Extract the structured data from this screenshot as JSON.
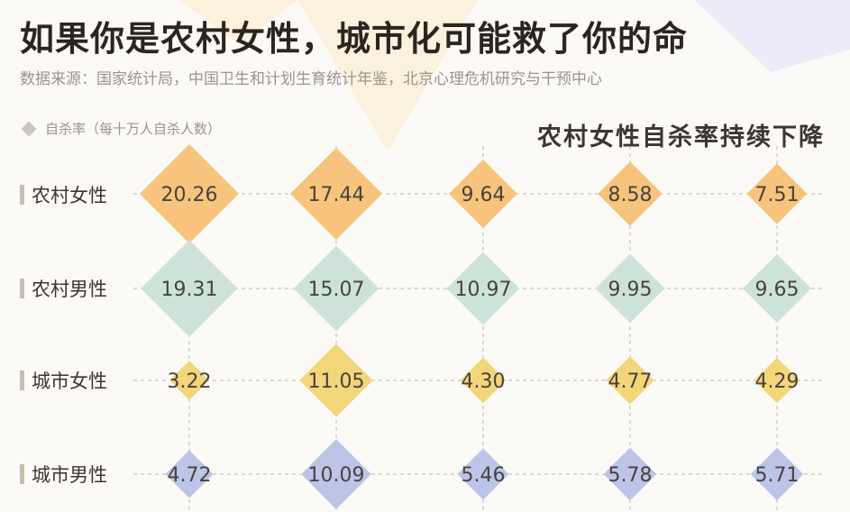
{
  "title": "如果你是农村女性，城市化可能救了你的命",
  "source": "数据来源：国家统计局，中国卫生和计划生育统计年鉴，北京心理危机研究与干预中心",
  "legend_label": "自杀率（每十万人自杀人数）",
  "subtitle": "农村女性自杀率持续下降",
  "colors": {
    "rural_female": "#f8c47d",
    "rural_male": "#cde3da",
    "urban_female": "#f3d67a",
    "urban_male": "#bcc5e8"
  },
  "chart_data": {
    "type": "scatter",
    "title": "农村女性自杀率持续下降",
    "ylabel": "自杀率（每十万人自杀人数）",
    "series": [
      {
        "name": "农村女性",
        "values": [
          20.26,
          17.44,
          9.64,
          8.58,
          7.51
        ]
      },
      {
        "name": "农村男性",
        "values": [
          19.31,
          15.07,
          10.97,
          9.95,
          9.65
        ]
      },
      {
        "name": "城市女性",
        "values": [
          3.22,
          11.05,
          4.3,
          4.77,
          4.29
        ]
      },
      {
        "name": "城市男性",
        "values": [
          4.72,
          10.09,
          5.46,
          5.78,
          5.71
        ]
      }
    ],
    "value_labels": [
      [
        "20.26",
        "17.44",
        "9.64",
        "8.58",
        "7.51"
      ],
      [
        "19.31",
        "15.07",
        "10.97",
        "9.95",
        "9.65"
      ],
      [
        "3.22",
        "11.05",
        "4.30",
        "4.77",
        "4.29"
      ],
      [
        "4.72",
        "10.09",
        "5.46",
        "5.78",
        "5.71"
      ]
    ],
    "grid": true
  }
}
